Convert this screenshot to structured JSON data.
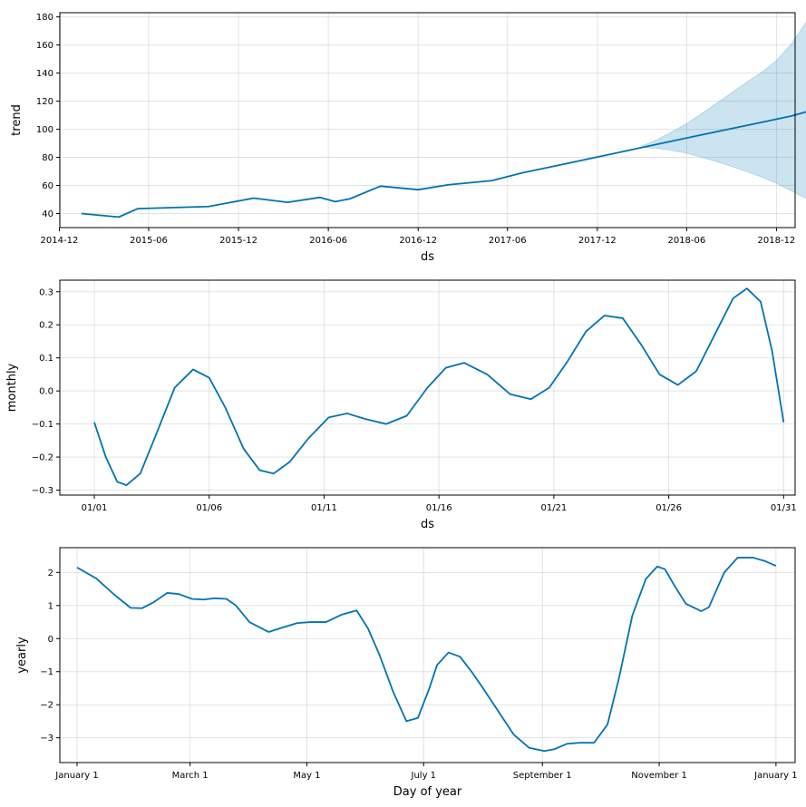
{
  "chart_data": [
    {
      "type": "line",
      "xlabel": "ds",
      "ylabel": "trend",
      "ylim": [
        30,
        183
      ],
      "xlim_days": [
        -30,
        1468
      ],
      "x_ticks": [
        "2014-12",
        "2015-06",
        "2015-12",
        "2016-06",
        "2016-12",
        "2017-06",
        "2017-12",
        "2018-06",
        "2018-12"
      ],
      "y_ticks": [
        40,
        60,
        80,
        100,
        120,
        140,
        160,
        180
      ],
      "grid": true,
      "colors": {
        "line": "#0072B2",
        "band": "#0072B2"
      },
      "series": [
        {
          "x": [
            "2015-01-15",
            "2015-04-01",
            "2015-05-10",
            "2015-10-01",
            "2016-01-01",
            "2016-03-10",
            "2016-05-15",
            "2016-06-15",
            "2016-07-15",
            "2016-09-15",
            "2016-12-01",
            "2017-02-01",
            "2017-05-01",
            "2017-07-01",
            "2017-09-01",
            "2017-11-01",
            "2018-01-01",
            "2018-03-01",
            "2018-05-01",
            "2018-07-01",
            "2018-09-01",
            "2018-11-01",
            "2019-01-01",
            "2019-02-01"
          ],
          "values": [
            40,
            37.5,
            43.5,
            45,
            51,
            48,
            51.5,
            48.5,
            50.5,
            59.5,
            57,
            60.5,
            63.5,
            69,
            73.5,
            78,
            82.5,
            87,
            91.5,
            96,
            100.5,
            105,
            109.5,
            112.5
          ]
        }
      ],
      "uncertainty": {
        "x": [
          "2018-03-01",
          "2018-04-01",
          "2018-05-01",
          "2018-06-01",
          "2018-07-01",
          "2018-08-01",
          "2018-09-01",
          "2018-10-01",
          "2018-11-01",
          "2018-12-01",
          "2019-01-01",
          "2019-02-01"
        ],
        "upper": [
          88,
          92.5,
          98,
          104,
          111,
          118.5,
          126,
          133.5,
          140.5,
          149,
          161,
          177
        ],
        "lower": [
          87,
          86.5,
          85,
          83,
          80,
          77,
          73.5,
          70,
          66,
          61.5,
          56,
          50.5
        ]
      }
    },
    {
      "type": "line",
      "xlabel": "ds",
      "ylabel": "monthly",
      "ylim": [
        -0.315,
        0.335
      ],
      "xlim": [
        -1.5,
        30.5
      ],
      "x_ticks": [
        "01/01",
        "01/06",
        "01/11",
        "01/16",
        "01/21",
        "01/26",
        "01/31"
      ],
      "y_ticks": [
        -0.3,
        -0.2,
        -0.1,
        0.0,
        0.1,
        0.2,
        0.3
      ],
      "y_tick_labels": [
        "−0.3",
        "−0.2",
        "−0.1",
        "0.0",
        "0.1",
        "0.2",
        "0.3"
      ],
      "grid": true,
      "colors": {
        "line": "#0072B2"
      },
      "series": [
        {
          "x": [
            0,
            0.5,
            1,
            1.4,
            2,
            2.7,
            3.5,
            4.3,
            5,
            5.7,
            6.5,
            7.2,
            7.8,
            8.5,
            9.3,
            10.2,
            11,
            11.8,
            12.7,
            13.6,
            14.5,
            15.3,
            16.1,
            17.1,
            18.1,
            19,
            19.8,
            20.6,
            21.4,
            22.2,
            23,
            23.8,
            24.6,
            25.4,
            26.2,
            27,
            27.8,
            28.4,
            29,
            29.5,
            30
          ],
          "values": [
            -0.095,
            -0.2,
            -0.275,
            -0.285,
            -0.25,
            -0.13,
            0.01,
            0.065,
            0.04,
            -0.05,
            -0.175,
            -0.24,
            -0.25,
            -0.215,
            -0.145,
            -0.08,
            -0.068,
            -0.085,
            -0.1,
            -0.075,
            0.01,
            0.07,
            0.085,
            0.05,
            -0.01,
            -0.025,
            0.01,
            0.09,
            0.18,
            0.228,
            0.22,
            0.14,
            0.05,
            0.018,
            0.06,
            0.17,
            0.28,
            0.31,
            0.27,
            0.12,
            -0.095
          ]
        }
      ]
    },
    {
      "type": "line",
      "xlabel": "Day of year",
      "ylabel": "yearly",
      "ylim": [
        -3.75,
        2.75
      ],
      "xlim": [
        -9,
        375
      ],
      "x_ticks": [
        "January 1",
        "March 1",
        "May 1",
        "July 1",
        "September 1",
        "November 1",
        "January 1"
      ],
      "x_tick_values": [
        0,
        59,
        120,
        181,
        243,
        304,
        365
      ],
      "y_ticks": [
        -3,
        -2,
        -1,
        0,
        1,
        2
      ],
      "y_tick_labels": [
        "−3",
        "−2",
        "−1",
        "0",
        "1",
        "2"
      ],
      "grid": true,
      "colors": {
        "line": "#0072B2"
      },
      "series": [
        {
          "x": [
            0,
            10,
            20,
            28,
            34,
            40,
            47,
            53,
            60,
            66,
            72,
            78,
            83,
            90,
            100,
            107,
            115,
            122,
            130,
            138,
            146,
            152,
            158,
            165,
            172,
            178,
            184,
            188,
            194,
            200,
            206,
            212,
            220,
            228,
            236,
            244,
            249,
            256,
            263,
            270,
            277,
            283,
            290,
            297,
            303,
            307,
            312,
            318,
            326,
            330,
            333,
            338,
            345,
            353,
            359,
            365
          ],
          "values": [
            2.15,
            1.82,
            1.3,
            0.93,
            0.92,
            1.1,
            1.38,
            1.35,
            1.2,
            1.18,
            1.22,
            1.2,
            1.0,
            0.5,
            0.2,
            0.33,
            0.47,
            0.5,
            0.5,
            0.72,
            0.85,
            0.3,
            -0.5,
            -1.6,
            -2.5,
            -2.4,
            -1.5,
            -0.8,
            -0.42,
            -0.55,
            -1.0,
            -1.5,
            -2.2,
            -2.9,
            -3.3,
            -3.4,
            -3.35,
            -3.18,
            -3.15,
            -3.15,
            -2.6,
            -1.2,
            0.7,
            1.8,
            2.18,
            2.1,
            1.6,
            1.05,
            0.83,
            0.95,
            1.35,
            2.0,
            2.45,
            2.45,
            2.35,
            2.2
          ]
        }
      ]
    }
  ]
}
